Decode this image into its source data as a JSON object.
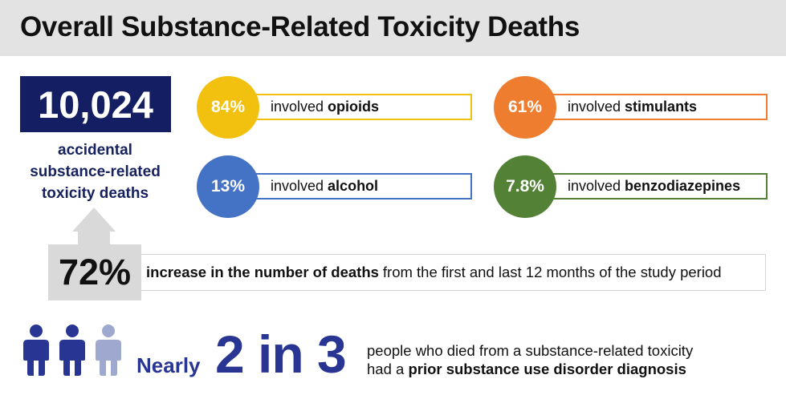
{
  "header": {
    "title": "Overall Substance-Related Toxicity Deaths"
  },
  "total": {
    "value": "10,024",
    "caption_lines": [
      "accidental",
      "substance-related",
      "toxicity deaths"
    ]
  },
  "stats": [
    {
      "percent": "84%",
      "prefix": "involved",
      "substance": "opioids",
      "color": "#f2c10f"
    },
    {
      "percent": "61%",
      "prefix": "involved",
      "substance": "stimulants",
      "color": "#ee7d30"
    },
    {
      "percent": "13%",
      "prefix": "involved",
      "substance": "alcohol",
      "color": "#4472c4"
    },
    {
      "percent": "7.8%",
      "prefix": "involved",
      "substance": "benzodiazepines",
      "color": "#538135"
    }
  ],
  "increase": {
    "percent": "72%",
    "bold_text": "increase in the number of deaths",
    "rest_text": "from the first and last 12 months of the study period"
  },
  "ratio": {
    "nearly": "Nearly",
    "value": "2 in 3",
    "line1": "people who died from a substance-related toxicity",
    "line2_prefix": "had a",
    "line2_bold": "prior substance use disorder diagnosis",
    "filled_color": "#283593",
    "empty_color": "#9fa8cf",
    "icons": [
      "person-icon-filled",
      "person-icon-filled",
      "person-icon-light"
    ]
  }
}
